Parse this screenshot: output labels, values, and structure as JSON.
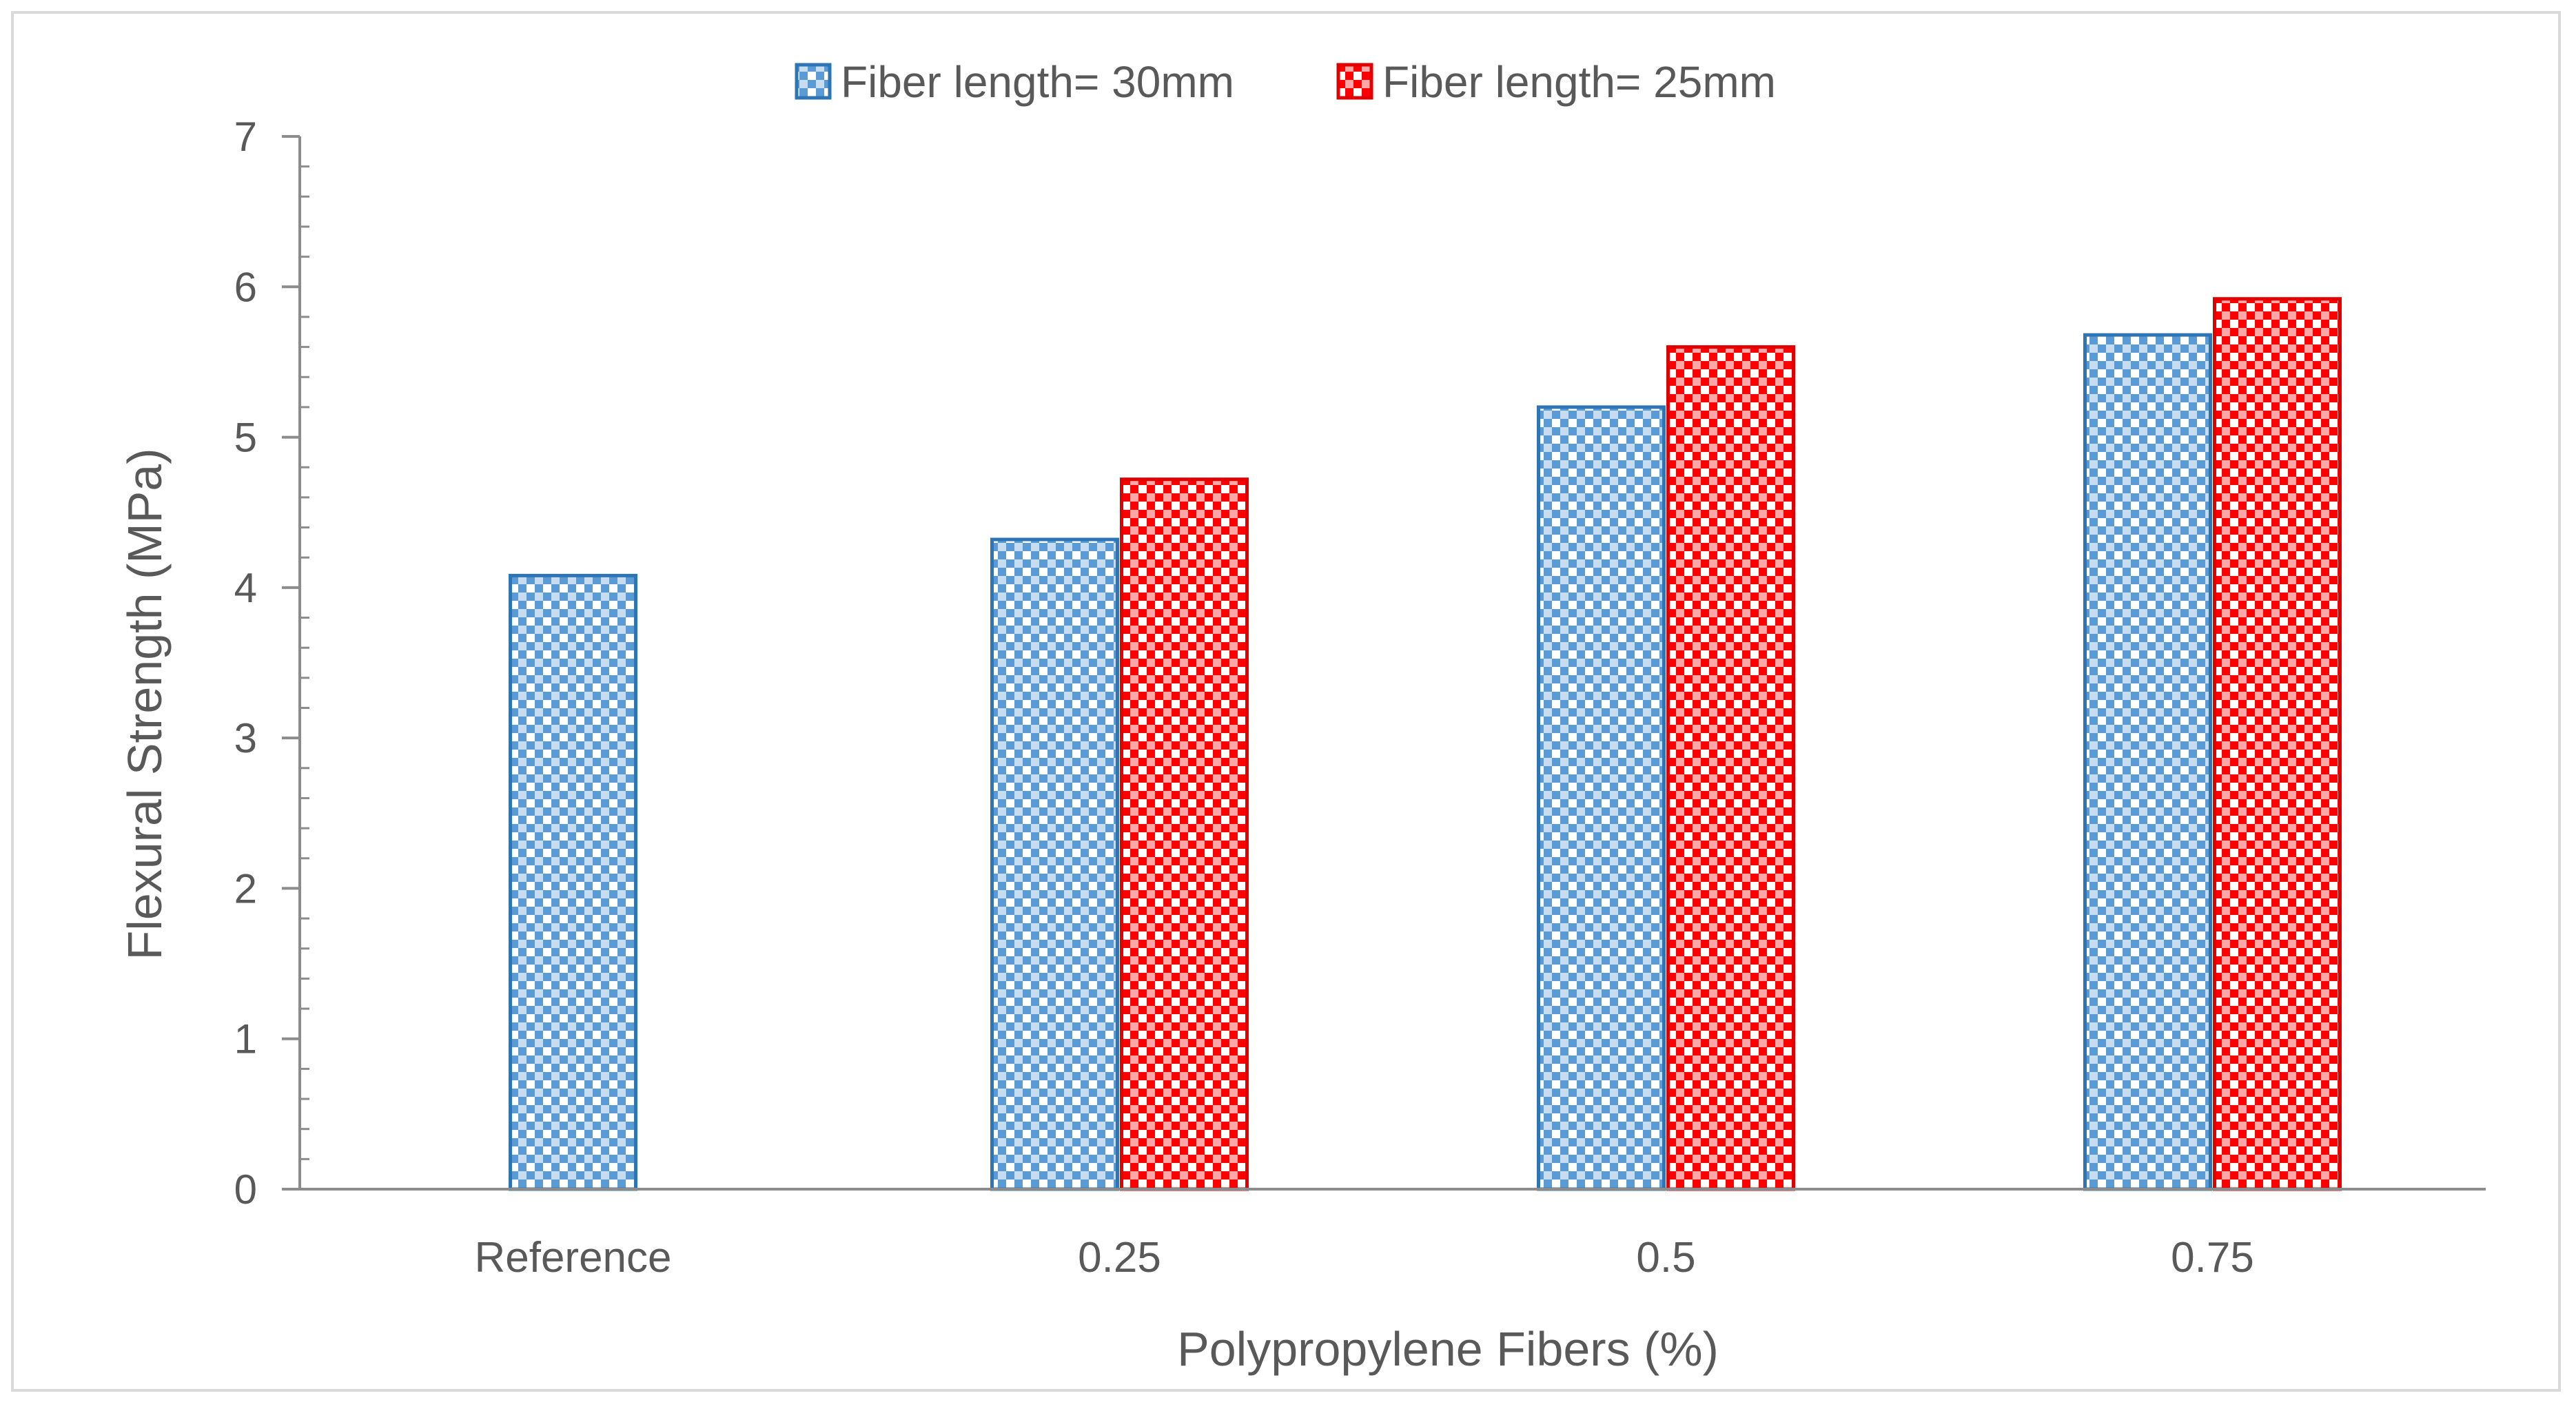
{
  "chart_data": {
    "type": "bar",
    "title": "",
    "xlabel": "Polypropylene Fibers (%)",
    "ylabel": "Flexural Strength (MPa)",
    "ylim": [
      0,
      7
    ],
    "yticks": [
      "0",
      "1",
      "2",
      "3",
      "4",
      "5",
      "6",
      "7"
    ],
    "minor_ticks_per_major": 5,
    "grid": false,
    "legend_position": "top-center",
    "categories": [
      "Reference",
      "0.25",
      "0.5",
      "0.75"
    ],
    "series": [
      {
        "name": "Fiber length= 30mm",
        "color": "#5b9bd5",
        "border_color": "#2e75b6",
        "pattern": "checkerboard",
        "values": [
          4.08,
          4.32,
          5.2,
          5.68
        ]
      },
      {
        "name": "Fiber length= 25mm",
        "color": "#ff0000",
        "border_color": "#e00000",
        "pattern": "checkerboard",
        "values": [
          null,
          4.72,
          5.6,
          5.92
        ]
      }
    ]
  },
  "colors": {
    "axis": "#8c8c8c",
    "text": "#595959",
    "frame": "#d9d9d9"
  }
}
